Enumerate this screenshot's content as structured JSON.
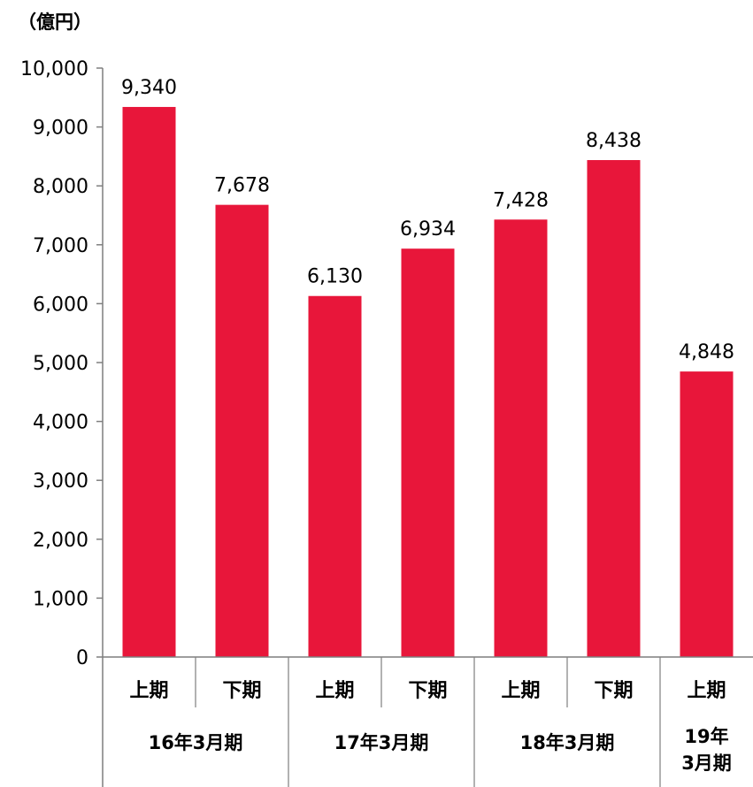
{
  "chart_data": {
    "type": "bar",
    "unit_label": "（億円）",
    "categories": [
      "上期",
      "下期",
      "上期",
      "下期",
      "上期",
      "下期",
      "上期"
    ],
    "values": [
      9340,
      7678,
      6130,
      6934,
      7428,
      8438,
      4848
    ],
    "value_labels": [
      "9,340",
      "7,678",
      "6,130",
      "6,934",
      "7,428",
      "8,438",
      "4,848"
    ],
    "groups": [
      {
        "label": "16年3月期",
        "span": 2
      },
      {
        "label": "17年3月期",
        "span": 2
      },
      {
        "label": "18年3月期",
        "span": 2
      },
      {
        "label": "19年\n3月期",
        "span": 1
      }
    ],
    "y_ticks": [
      0,
      1000,
      2000,
      3000,
      4000,
      5000,
      6000,
      7000,
      8000,
      9000,
      10000
    ],
    "y_tick_labels": [
      "0",
      "1,000",
      "2,000",
      "3,000",
      "4,000",
      "5,000",
      "6,000",
      "7,000",
      "8,000",
      "9,000",
      "10,000"
    ],
    "ylim": [
      0,
      10000
    ],
    "bar_color": "#E8163A",
    "axis_color": "#7F7F7F",
    "grid": false,
    "legend": "none"
  }
}
